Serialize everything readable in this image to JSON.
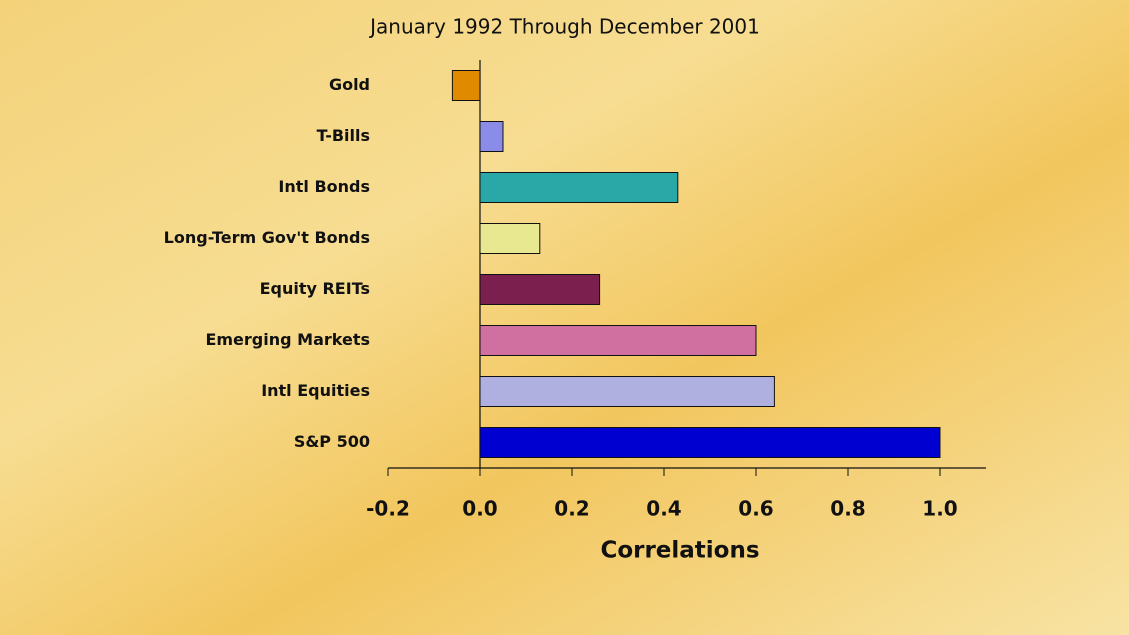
{
  "chart_data": {
    "type": "bar",
    "orientation": "horizontal",
    "title": "January 1992 Through December 2001",
    "x_label": "Correlations",
    "categories": [
      "Gold",
      "T-Bills",
      "Intl Bonds",
      "Long-Term Gov't Bonds",
      "Equity REITs",
      "Emerging Markets",
      "Intl Equities",
      "S&P 500"
    ],
    "values": [
      -0.06,
      0.05,
      0.43,
      0.13,
      0.26,
      0.6,
      0.64,
      1.0
    ],
    "colors": [
      "#e08a00",
      "#8b8be8",
      "#2aa8a8",
      "#e8e890",
      "#7a1f4e",
      "#d070a0",
      "#b0b0e0",
      "#0000d0"
    ],
    "xlim": [
      -0.2,
      1.1
    ],
    "xticks": [
      -0.2,
      {
        "value": 0,
        "label": "0.0"
      },
      0.2,
      0.4,
      0.6,
      0.8,
      {
        "value": 1,
        "label": "1.0"
      }
    ]
  }
}
